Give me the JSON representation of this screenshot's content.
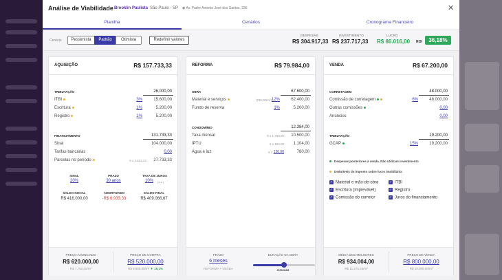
{
  "header": {
    "title": "Análise de Viabilidade",
    "property": "Brooklin Paulista",
    "city": "São Paulo - SP",
    "address": "Av. Padre Antonio José dos Santos, 326",
    "close_icon": "close-icon"
  },
  "tabs": [
    {
      "label": "Planilha",
      "active": true
    },
    {
      "label": "Cenários",
      "active": false
    },
    {
      "label": "Cronograma Financeiro",
      "active": false
    }
  ],
  "controls": {
    "scenario_label": "Cenário",
    "scenarios": [
      "Pessimista",
      "Padrão",
      "Otimista"
    ],
    "selected_scenario": "Padrão",
    "reset_label": "Redefinir valores"
  },
  "summary": {
    "expenses_label": "DESPESAS",
    "expenses": "R$ 304.917,33",
    "investment_label": "INVESTIMENTO",
    "investment": "R$ 237.717,33",
    "profit_label": "LUCRO",
    "profit": "R$ 86.016,00",
    "roi_label": "ROI",
    "roi": "36,18%"
  },
  "acquisition": {
    "title": "AQUISIÇÃO",
    "total": "R$ 157.733,33",
    "taxation": {
      "label": "TRIBUTAÇÃO",
      "total": "26.000,00",
      "rows": [
        {
          "label": "ITBI",
          "pct": "3%",
          "value": "15.600,00"
        },
        {
          "label": "Escritura",
          "pct": "1%",
          "value": "5.200,00"
        },
        {
          "label": "Registro",
          "pct": "1%",
          "value": "5.200,00"
        }
      ]
    },
    "financing": {
      "label": "FINANCIAMENTO",
      "total": "131.733,33",
      "rows": [
        {
          "label": "Sinal",
          "value": "104.000,00"
        },
        {
          "label": "Tarifas bancárias",
          "value": "0,00"
        },
        {
          "label": "Parcelas no período",
          "hint": "6 x 4.622,22",
          "value": "27.733,33"
        }
      ]
    },
    "kpis": [
      {
        "label": "SINAL",
        "value": "20%"
      },
      {
        "label": "PRAZO",
        "value": "30 anos"
      },
      {
        "label": "TAXA DE JUROS",
        "value": "10%",
        "suffix": "(a.a.)"
      }
    ],
    "balances": [
      {
        "label": "SALDO INICIAL",
        "value": "R$ 416.000,00"
      },
      {
        "label": "AMORTIZADO",
        "value": "-R$ 6.933,33"
      },
      {
        "label": "SALDO FINAL",
        "value": "R$ 409.066,67"
      }
    ],
    "footer": {
      "left_label": "PREÇO ANUNCIADO",
      "left_value": "R$ 620.000,00",
      "left_sub": "R$ 7.750,00/m²",
      "right_label": "PREÇO DE COMPRA",
      "right_value": "R$ 520.000,00",
      "right_sub": "R$ 6.500,00/m²",
      "right_delta": "16,1%"
    }
  },
  "renovation": {
    "title": "REFORMA",
    "total": "R$ 79.984,00",
    "works": {
      "label": "OBRA",
      "total": "67.600,00",
      "rows": [
        {
          "label": "Material e serviços",
          "hint": "(780,00/m²)",
          "pct": "12%",
          "value": "62.400,00"
        },
        {
          "label": "Fundo de reserva",
          "pct": "1%",
          "value": "5.200,00"
        }
      ]
    },
    "condo": {
      "label": "CONDOMÍNIO",
      "total": "12.384,00",
      "rows": [
        {
          "label": "Taxa mensal",
          "hint": "6 x 1.750,00",
          "value": "10.500,00"
        },
        {
          "label": "IPTU",
          "hint": "6 x 184,00",
          "value": "1.104,00"
        },
        {
          "label": "Água e luz",
          "hint": "6 x",
          "hint_value": "130,00",
          "value": "780,00"
        }
      ]
    },
    "footer": {
      "term_label": "PRAZO",
      "term_value": "6 meses",
      "term_sub": "REFORMA + VENDA",
      "duration_label": "DURAÇÃO DA OBRA",
      "duration_value": "4 meses",
      "duration_fraction": 0.5
    }
  },
  "sale": {
    "title": "VENDA",
    "total": "R$ 67.200,00",
    "brokerage": {
      "label": "CORRETAGEM",
      "total": "48.000,00",
      "rows": [
        {
          "label": "Comissão de corretagem",
          "pct": "6%",
          "value": "48.000,00"
        },
        {
          "label": "Outras comissões",
          "value": "0,00"
        },
        {
          "label": "Anúncios",
          "value": "0,00"
        }
      ]
    },
    "taxation": {
      "label": "TRIBUTAÇÃO",
      "total": "19.200,00",
      "rows": [
        {
          "label": "GCAP",
          "pct": "15%",
          "value": "19.200,00"
        }
      ]
    },
    "notes": {
      "green": "Despesas posteriores à venda. Não utilizam investimento",
      "yellow": "Dedutíveis do imposto sobre lucro imobiliário:"
    },
    "checks": [
      "Material e mão-de-obra",
      "ITBI",
      "Escritura (imprevável)",
      "Registro",
      "Comissão do corretor",
      "Juros do financiamento"
    ],
    "footer": {
      "left_label": "MÉDIA DOS MELHORES",
      "left_value": "R$ 934.004,00",
      "left_sub": "R$ 11.675,05/m²",
      "right_label": "PREÇO DE VENDA",
      "right_value": "R$ 800.000,00",
      "right_sub": "R$ 10.000,00/m²"
    }
  },
  "colors": {
    "accent": "#3b3ba8",
    "brand": "#5b2fb5",
    "positive": "#2ea85a",
    "negative": "#d33333",
    "warning": "#f0b429"
  }
}
